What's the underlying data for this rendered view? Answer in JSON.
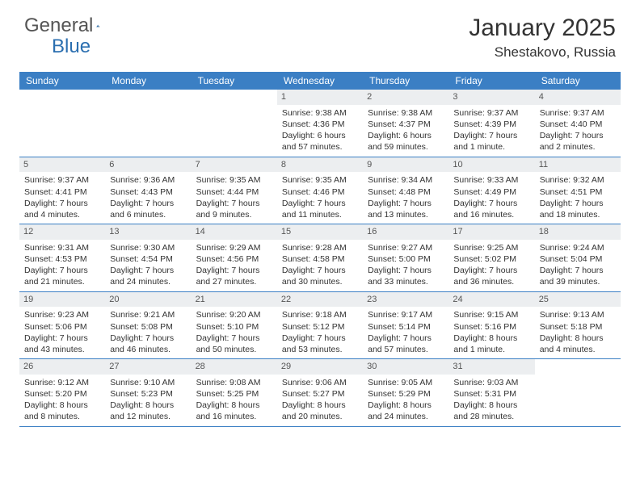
{
  "logo": {
    "general": "General",
    "blue": "Blue"
  },
  "header": {
    "month_title": "January 2025",
    "location": "Shestakovo, Russia"
  },
  "colors": {
    "header_bar": "#3b7fc4",
    "daynum_bg": "#eceef0",
    "border": "#3b7fc4",
    "logo_blue": "#2b6fb0",
    "logo_gray": "#555555"
  },
  "daynames": [
    "Sunday",
    "Monday",
    "Tuesday",
    "Wednesday",
    "Thursday",
    "Friday",
    "Saturday"
  ],
  "weeks": [
    [
      {
        "num": "",
        "text": ""
      },
      {
        "num": "",
        "text": ""
      },
      {
        "num": "",
        "text": ""
      },
      {
        "num": "1",
        "text": "Sunrise: 9:38 AM\nSunset: 4:36 PM\nDaylight: 6 hours and 57 minutes."
      },
      {
        "num": "2",
        "text": "Sunrise: 9:38 AM\nSunset: 4:37 PM\nDaylight: 6 hours and 59 minutes."
      },
      {
        "num": "3",
        "text": "Sunrise: 9:37 AM\nSunset: 4:39 PM\nDaylight: 7 hours and 1 minute."
      },
      {
        "num": "4",
        "text": "Sunrise: 9:37 AM\nSunset: 4:40 PM\nDaylight: 7 hours and 2 minutes."
      }
    ],
    [
      {
        "num": "5",
        "text": "Sunrise: 9:37 AM\nSunset: 4:41 PM\nDaylight: 7 hours and 4 minutes."
      },
      {
        "num": "6",
        "text": "Sunrise: 9:36 AM\nSunset: 4:43 PM\nDaylight: 7 hours and 6 minutes."
      },
      {
        "num": "7",
        "text": "Sunrise: 9:35 AM\nSunset: 4:44 PM\nDaylight: 7 hours and 9 minutes."
      },
      {
        "num": "8",
        "text": "Sunrise: 9:35 AM\nSunset: 4:46 PM\nDaylight: 7 hours and 11 minutes."
      },
      {
        "num": "9",
        "text": "Sunrise: 9:34 AM\nSunset: 4:48 PM\nDaylight: 7 hours and 13 minutes."
      },
      {
        "num": "10",
        "text": "Sunrise: 9:33 AM\nSunset: 4:49 PM\nDaylight: 7 hours and 16 minutes."
      },
      {
        "num": "11",
        "text": "Sunrise: 9:32 AM\nSunset: 4:51 PM\nDaylight: 7 hours and 18 minutes."
      }
    ],
    [
      {
        "num": "12",
        "text": "Sunrise: 9:31 AM\nSunset: 4:53 PM\nDaylight: 7 hours and 21 minutes."
      },
      {
        "num": "13",
        "text": "Sunrise: 9:30 AM\nSunset: 4:54 PM\nDaylight: 7 hours and 24 minutes."
      },
      {
        "num": "14",
        "text": "Sunrise: 9:29 AM\nSunset: 4:56 PM\nDaylight: 7 hours and 27 minutes."
      },
      {
        "num": "15",
        "text": "Sunrise: 9:28 AM\nSunset: 4:58 PM\nDaylight: 7 hours and 30 minutes."
      },
      {
        "num": "16",
        "text": "Sunrise: 9:27 AM\nSunset: 5:00 PM\nDaylight: 7 hours and 33 minutes."
      },
      {
        "num": "17",
        "text": "Sunrise: 9:25 AM\nSunset: 5:02 PM\nDaylight: 7 hours and 36 minutes."
      },
      {
        "num": "18",
        "text": "Sunrise: 9:24 AM\nSunset: 5:04 PM\nDaylight: 7 hours and 39 minutes."
      }
    ],
    [
      {
        "num": "19",
        "text": "Sunrise: 9:23 AM\nSunset: 5:06 PM\nDaylight: 7 hours and 43 minutes."
      },
      {
        "num": "20",
        "text": "Sunrise: 9:21 AM\nSunset: 5:08 PM\nDaylight: 7 hours and 46 minutes."
      },
      {
        "num": "21",
        "text": "Sunrise: 9:20 AM\nSunset: 5:10 PM\nDaylight: 7 hours and 50 minutes."
      },
      {
        "num": "22",
        "text": "Sunrise: 9:18 AM\nSunset: 5:12 PM\nDaylight: 7 hours and 53 minutes."
      },
      {
        "num": "23",
        "text": "Sunrise: 9:17 AM\nSunset: 5:14 PM\nDaylight: 7 hours and 57 minutes."
      },
      {
        "num": "24",
        "text": "Sunrise: 9:15 AM\nSunset: 5:16 PM\nDaylight: 8 hours and 1 minute."
      },
      {
        "num": "25",
        "text": "Sunrise: 9:13 AM\nSunset: 5:18 PM\nDaylight: 8 hours and 4 minutes."
      }
    ],
    [
      {
        "num": "26",
        "text": "Sunrise: 9:12 AM\nSunset: 5:20 PM\nDaylight: 8 hours and 8 minutes."
      },
      {
        "num": "27",
        "text": "Sunrise: 9:10 AM\nSunset: 5:23 PM\nDaylight: 8 hours and 12 minutes."
      },
      {
        "num": "28",
        "text": "Sunrise: 9:08 AM\nSunset: 5:25 PM\nDaylight: 8 hours and 16 minutes."
      },
      {
        "num": "29",
        "text": "Sunrise: 9:06 AM\nSunset: 5:27 PM\nDaylight: 8 hours and 20 minutes."
      },
      {
        "num": "30",
        "text": "Sunrise: 9:05 AM\nSunset: 5:29 PM\nDaylight: 8 hours and 24 minutes."
      },
      {
        "num": "31",
        "text": "Sunrise: 9:03 AM\nSunset: 5:31 PM\nDaylight: 8 hours and 28 minutes."
      },
      {
        "num": "",
        "text": ""
      }
    ]
  ]
}
